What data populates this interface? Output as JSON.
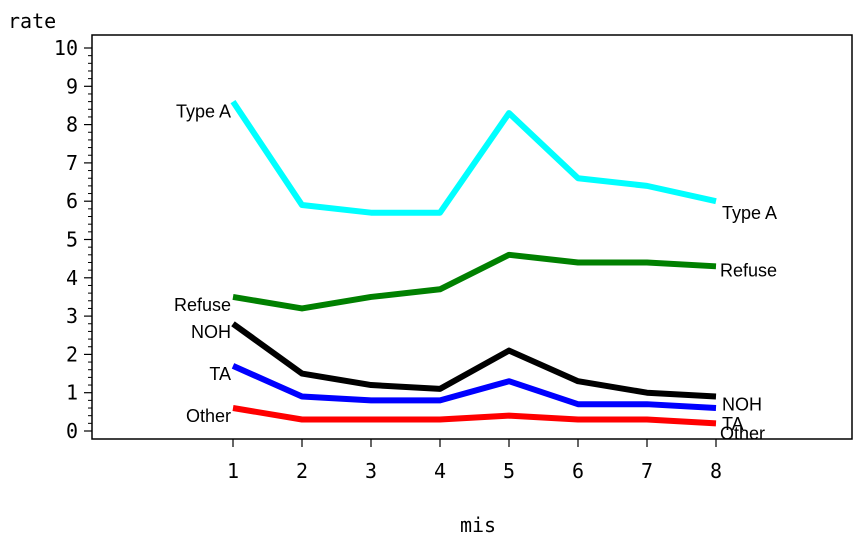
{
  "chart_data": {
    "type": "line",
    "ylabel": "rate",
    "xlabel": "mis",
    "x": [
      1,
      2,
      3,
      4,
      5,
      6,
      7,
      8
    ],
    "xticks": [
      "1",
      "2",
      "3",
      "4",
      "5",
      "6",
      "7",
      "8"
    ],
    "xlim": [
      0,
      10
    ],
    "ylim": [
      0,
      10
    ],
    "yticks": [
      "0",
      "1",
      "2",
      "3",
      "4",
      "5",
      "6",
      "7",
      "8",
      "9",
      "10"
    ],
    "grid": false,
    "legend": "none",
    "series": [
      {
        "name": "Type A",
        "color": "#00ffff",
        "values": [
          8.6,
          5.9,
          5.7,
          5.7,
          8.3,
          6.6,
          6.4,
          6.0
        ],
        "start_label": "Type A",
        "end_label": "Type A"
      },
      {
        "name": "Refuse",
        "color": "#008000",
        "values": [
          3.5,
          3.2,
          3.5,
          3.7,
          4.6,
          4.4,
          4.4,
          4.3
        ],
        "start_label": "Refuse",
        "end_label": "Refuse"
      },
      {
        "name": "NOH",
        "color": "#000000",
        "values": [
          2.8,
          1.5,
          1.2,
          1.1,
          2.1,
          1.3,
          1.0,
          0.9
        ],
        "start_label": "NOH",
        "end_label": "NOH"
      },
      {
        "name": "TA",
        "color": "#0000ff",
        "values": [
          1.7,
          0.9,
          0.8,
          0.8,
          1.3,
          0.7,
          0.7,
          0.6
        ],
        "start_label": "TA",
        "end_label": "TA"
      },
      {
        "name": "Other",
        "color": "#ff0000",
        "values": [
          0.6,
          0.3,
          0.3,
          0.3,
          0.4,
          0.3,
          0.3,
          0.2
        ],
        "start_label": "Other",
        "end_label": "Other"
      }
    ]
  }
}
